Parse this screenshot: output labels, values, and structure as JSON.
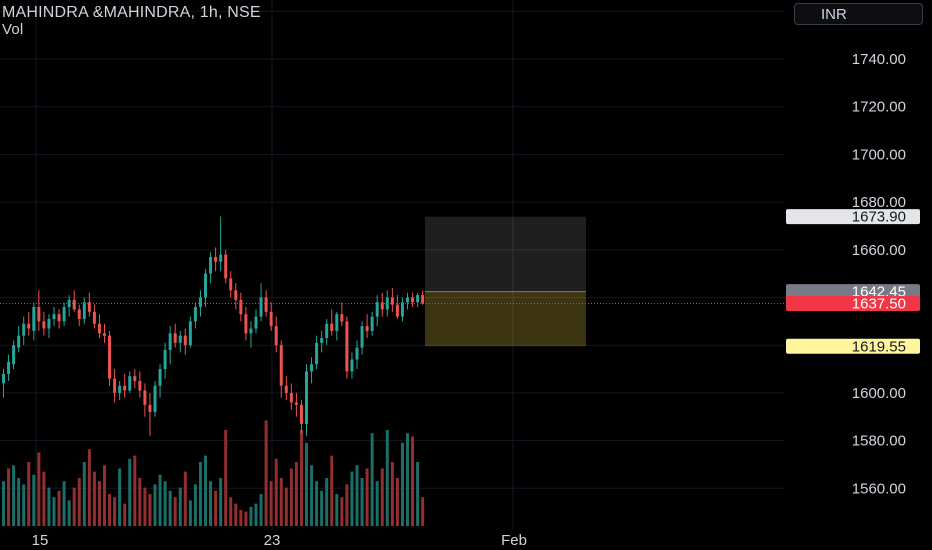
{
  "header": {
    "title": "MAHINDRA &MAHINDRA, 1h, NSE",
    "volume_label": "Vol"
  },
  "currency_button": {
    "label": "INR"
  },
  "colors": {
    "background": "#000000",
    "up": "#26a69a",
    "down": "#ef5350",
    "up_volume": "#1c6f69",
    "down_volume": "#93302f",
    "grid": "#131722",
    "axis_text": "#d1d4dc",
    "last_price_tag": "#f23645",
    "target_tag": "#e4e5e8",
    "stop_tag": "#fff59d",
    "entry_tag": "#787b86"
  },
  "chart_data": {
    "type": "candlestick",
    "symbol": "MAHINDRA &MAHINDRA",
    "interval": "1h",
    "exchange": "NSE",
    "y_axis_labels": [
      "1740.00",
      "1720.00",
      "1700.00",
      "1680.00",
      "1660.00",
      "1600.00",
      "1580.00",
      "1560.00"
    ],
    "ylim": [
      1540,
      1770
    ],
    "x_axis_labels": [
      "15",
      "23",
      "Feb"
    ],
    "candles": [
      {
        "o": 1604,
        "h": 1610,
        "l": 1598,
        "c": 1608
      },
      {
        "o": 1608,
        "h": 1616,
        "l": 1605,
        "c": 1613
      },
      {
        "o": 1612,
        "h": 1622,
        "l": 1610,
        "c": 1620
      },
      {
        "o": 1619,
        "h": 1628,
        "l": 1617,
        "c": 1624
      },
      {
        "o": 1624,
        "h": 1632,
        "l": 1620,
        "c": 1629
      },
      {
        "o": 1629,
        "h": 1634,
        "l": 1624,
        "c": 1627
      },
      {
        "o": 1626,
        "h": 1638,
        "l": 1622,
        "c": 1636
      },
      {
        "o": 1636,
        "h": 1643,
        "l": 1626,
        "c": 1630
      },
      {
        "o": 1630,
        "h": 1634,
        "l": 1624,
        "c": 1627
      },
      {
        "o": 1627,
        "h": 1633,
        "l": 1623,
        "c": 1631
      },
      {
        "o": 1631,
        "h": 1636,
        "l": 1628,
        "c": 1633
      },
      {
        "o": 1633,
        "h": 1635,
        "l": 1627,
        "c": 1630
      },
      {
        "o": 1630,
        "h": 1638,
        "l": 1628,
        "c": 1636
      },
      {
        "o": 1636,
        "h": 1641,
        "l": 1632,
        "c": 1639
      },
      {
        "o": 1639,
        "h": 1643,
        "l": 1634,
        "c": 1635
      },
      {
        "o": 1635,
        "h": 1637,
        "l": 1628,
        "c": 1631
      },
      {
        "o": 1631,
        "h": 1640,
        "l": 1629,
        "c": 1638
      },
      {
        "o": 1638,
        "h": 1642,
        "l": 1632,
        "c": 1634
      },
      {
        "o": 1634,
        "h": 1637,
        "l": 1627,
        "c": 1629
      },
      {
        "o": 1629,
        "h": 1633,
        "l": 1623,
        "c": 1625
      },
      {
        "o": 1625,
        "h": 1629,
        "l": 1621,
        "c": 1624
      },
      {
        "o": 1624,
        "h": 1626,
        "l": 1603,
        "c": 1606
      },
      {
        "o": 1606,
        "h": 1610,
        "l": 1596,
        "c": 1600
      },
      {
        "o": 1600,
        "h": 1605,
        "l": 1597,
        "c": 1603
      },
      {
        "o": 1603,
        "h": 1608,
        "l": 1598,
        "c": 1601
      },
      {
        "o": 1601,
        "h": 1609,
        "l": 1600,
        "c": 1607
      },
      {
        "o": 1607,
        "h": 1610,
        "l": 1602,
        "c": 1605
      },
      {
        "o": 1605,
        "h": 1609,
        "l": 1598,
        "c": 1601
      },
      {
        "o": 1601,
        "h": 1604,
        "l": 1590,
        "c": 1595
      },
      {
        "o": 1595,
        "h": 1600,
        "l": 1582,
        "c": 1592
      },
      {
        "o": 1592,
        "h": 1605,
        "l": 1590,
        "c": 1603
      },
      {
        "o": 1603,
        "h": 1612,
        "l": 1598,
        "c": 1610
      },
      {
        "o": 1610,
        "h": 1621,
        "l": 1606,
        "c": 1618
      },
      {
        "o": 1618,
        "h": 1628,
        "l": 1612,
        "c": 1625
      },
      {
        "o": 1625,
        "h": 1629,
        "l": 1619,
        "c": 1621
      },
      {
        "o": 1621,
        "h": 1626,
        "l": 1617,
        "c": 1624
      },
      {
        "o": 1624,
        "h": 1627,
        "l": 1616,
        "c": 1620
      },
      {
        "o": 1620,
        "h": 1632,
        "l": 1619,
        "c": 1630
      },
      {
        "o": 1630,
        "h": 1638,
        "l": 1627,
        "c": 1636
      },
      {
        "o": 1636,
        "h": 1643,
        "l": 1632,
        "c": 1640
      },
      {
        "o": 1640,
        "h": 1652,
        "l": 1636,
        "c": 1650
      },
      {
        "o": 1650,
        "h": 1659,
        "l": 1646,
        "c": 1657
      },
      {
        "o": 1657,
        "h": 1661,
        "l": 1651,
        "c": 1655
      },
      {
        "o": 1655,
        "h": 1674,
        "l": 1651,
        "c": 1658
      },
      {
        "o": 1658,
        "h": 1660,
        "l": 1646,
        "c": 1648
      },
      {
        "o": 1648,
        "h": 1651,
        "l": 1640,
        "c": 1643
      },
      {
        "o": 1643,
        "h": 1646,
        "l": 1635,
        "c": 1639
      },
      {
        "o": 1639,
        "h": 1642,
        "l": 1630,
        "c": 1633
      },
      {
        "o": 1633,
        "h": 1636,
        "l": 1622,
        "c": 1625
      },
      {
        "o": 1625,
        "h": 1630,
        "l": 1619,
        "c": 1627
      },
      {
        "o": 1627,
        "h": 1635,
        "l": 1625,
        "c": 1632
      },
      {
        "o": 1632,
        "h": 1646,
        "l": 1630,
        "c": 1640
      },
      {
        "o": 1640,
        "h": 1643,
        "l": 1632,
        "c": 1634
      },
      {
        "o": 1634,
        "h": 1638,
        "l": 1626,
        "c": 1628
      },
      {
        "o": 1628,
        "h": 1632,
        "l": 1617,
        "c": 1620
      },
      {
        "o": 1620,
        "h": 1622,
        "l": 1598,
        "c": 1603
      },
      {
        "o": 1603,
        "h": 1607,
        "l": 1597,
        "c": 1600
      },
      {
        "o": 1600,
        "h": 1604,
        "l": 1593,
        "c": 1596
      },
      {
        "o": 1596,
        "h": 1600,
        "l": 1590,
        "c": 1595
      },
      {
        "o": 1595,
        "h": 1597,
        "l": 1583,
        "c": 1587
      },
      {
        "o": 1587,
        "h": 1612,
        "l": 1582,
        "c": 1609
      },
      {
        "o": 1609,
        "h": 1615,
        "l": 1604,
        "c": 1612
      },
      {
        "o": 1612,
        "h": 1624,
        "l": 1610,
        "c": 1621
      },
      {
        "o": 1621,
        "h": 1626,
        "l": 1617,
        "c": 1623
      },
      {
        "o": 1623,
        "h": 1631,
        "l": 1620,
        "c": 1629
      },
      {
        "o": 1629,
        "h": 1635,
        "l": 1624,
        "c": 1626
      },
      {
        "o": 1626,
        "h": 1634,
        "l": 1622,
        "c": 1633
      },
      {
        "o": 1633,
        "h": 1638,
        "l": 1628,
        "c": 1630
      },
      {
        "o": 1630,
        "h": 1632,
        "l": 1606,
        "c": 1609
      },
      {
        "o": 1609,
        "h": 1617,
        "l": 1606,
        "c": 1614
      },
      {
        "o": 1614,
        "h": 1622,
        "l": 1610,
        "c": 1619
      },
      {
        "o": 1619,
        "h": 1630,
        "l": 1616,
        "c": 1628
      },
      {
        "o": 1628,
        "h": 1633,
        "l": 1623,
        "c": 1626
      },
      {
        "o": 1626,
        "h": 1634,
        "l": 1624,
        "c": 1632
      },
      {
        "o": 1632,
        "h": 1641,
        "l": 1628,
        "c": 1638
      },
      {
        "o": 1638,
        "h": 1642,
        "l": 1632,
        "c": 1635
      },
      {
        "o": 1635,
        "h": 1643,
        "l": 1632,
        "c": 1640
      },
      {
        "o": 1640,
        "h": 1644,
        "l": 1634,
        "c": 1637
      },
      {
        "o": 1637,
        "h": 1641,
        "l": 1631,
        "c": 1632
      },
      {
        "o": 1632,
        "h": 1640,
        "l": 1630,
        "c": 1638
      },
      {
        "o": 1638,
        "h": 1642,
        "l": 1635,
        "c": 1640
      },
      {
        "o": 1640,
        "h": 1642,
        "l": 1636,
        "c": 1638
      },
      {
        "o": 1638,
        "h": 1642,
        "l": 1636,
        "c": 1641
      },
      {
        "o": 1641,
        "h": 1643,
        "l": 1637,
        "c": 1637.5
      }
    ],
    "volumes": [
      28,
      36,
      38,
      30,
      26,
      40,
      32,
      46,
      34,
      24,
      18,
      22,
      28,
      16,
      24,
      30,
      40,
      48,
      34,
      28,
      38,
      20,
      18,
      36,
      14,
      42,
      44,
      30,
      24,
      20,
      26,
      32,
      28,
      22,
      18,
      24,
      34,
      16,
      26,
      40,
      44,
      28,
      22,
      30,
      60,
      18,
      14,
      10,
      9,
      12,
      14,
      20,
      66,
      28,
      42,
      30,
      24,
      36,
      40,
      60,
      52,
      38,
      28,
      22,
      30,
      44,
      20,
      18,
      26,
      34,
      38,
      30,
      36,
      58,
      28,
      36,
      60,
      40,
      30,
      52,
      58,
      56,
      40,
      18
    ],
    "volume_direction": [
      1,
      0,
      1,
      1,
      1,
      0,
      1,
      0,
      0,
      1,
      1,
      0,
      1,
      1,
      0,
      0,
      1,
      0,
      0,
      0,
      0,
      0,
      0,
      1,
      0,
      1,
      0,
      0,
      0,
      0,
      1,
      1,
      1,
      1,
      0,
      1,
      0,
      1,
      1,
      1,
      1,
      1,
      0,
      1,
      0,
      0,
      0,
      0,
      0,
      1,
      1,
      1,
      0,
      0,
      0,
      0,
      0,
      0,
      0,
      0,
      1,
      1,
      1,
      1,
      1,
      0,
      1,
      0,
      0,
      1,
      1,
      1,
      0,
      1,
      1,
      0,
      1,
      0,
      0,
      1,
      1,
      0,
      1,
      0
    ],
    "last_price": 1637.5,
    "position": {
      "target": 1673.9,
      "entry": 1642.45,
      "stop": 1619.55
    },
    "price_tags": [
      {
        "label": "1673.90",
        "value": 1673.9,
        "kind": "target"
      },
      {
        "label": "1642.45",
        "value": 1642.45,
        "kind": "entry"
      },
      {
        "label": "1637.50",
        "value": 1637.5,
        "kind": "last"
      },
      {
        "label": "1619.55",
        "value": 1619.55,
        "kind": "stop"
      }
    ]
  }
}
